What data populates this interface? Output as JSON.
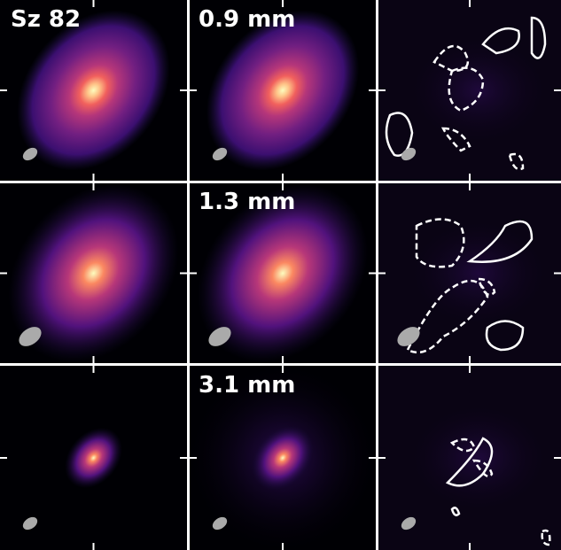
{
  "panel_labels": [
    "Sz 82",
    "0.9 mm",
    "1.3 mm",
    "3.1 mm"
  ]
}
